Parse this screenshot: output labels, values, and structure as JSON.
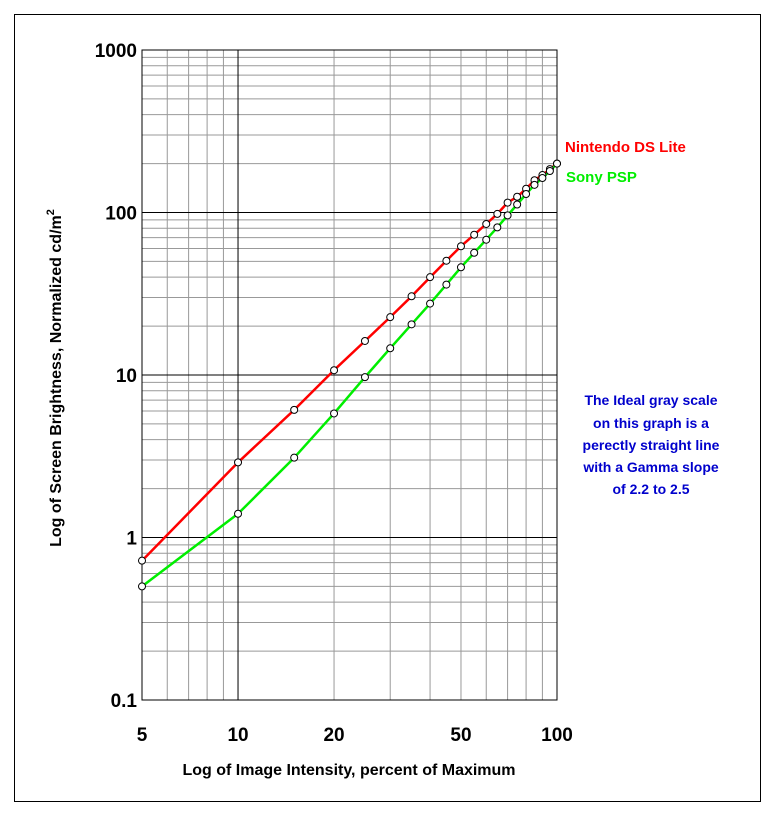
{
  "chart_data": {
    "type": "line",
    "xlabel": "Log of Image Intensity, percent of Maximum",
    "ylabel": "Log of Screen Brightness, Normalized cd/m",
    "ylabel_sup": "2",
    "xscale": "log",
    "yscale": "log",
    "xlim": [
      5,
      100
    ],
    "ylim": [
      0.1,
      1000
    ],
    "grid": true,
    "xticks": [
      5,
      10,
      20,
      50,
      100
    ],
    "xtick_labels": [
      "5",
      "10",
      "20",
      "50",
      "100"
    ],
    "yticks": [
      0.1,
      1,
      10,
      100,
      1000
    ],
    "ytick_labels": [
      "0.1",
      "1",
      "10",
      "100",
      "1000"
    ],
    "legend_position": "right of line ends",
    "series": [
      {
        "name": "Nintendo DS Lite",
        "color": "#ff0000",
        "x": [
          5,
          10,
          15,
          20,
          25,
          30,
          35,
          40,
          45,
          50,
          55,
          60,
          65,
          70,
          75,
          80,
          85,
          90,
          95,
          100
        ],
        "y": [
          0.72,
          2.9,
          6.1,
          10.7,
          16.2,
          22.7,
          30.5,
          40,
          50.5,
          62,
          73,
          85,
          98,
          115,
          125,
          140,
          158,
          170,
          185,
          200
        ]
      },
      {
        "name": "Sony PSP",
        "color": "#00ee00",
        "x": [
          5,
          10,
          15,
          20,
          25,
          30,
          35,
          40,
          45,
          50,
          55,
          60,
          65,
          70,
          75,
          80,
          85,
          90,
          95,
          100
        ],
        "y": [
          0.5,
          1.4,
          3.1,
          5.8,
          9.7,
          14.6,
          20.5,
          27.5,
          36,
          46,
          56.5,
          68,
          81,
          96,
          112,
          130,
          148,
          163,
          180,
          200
        ]
      }
    ],
    "annotation_lines": [
      "The Ideal gray scale",
      "on this graph is a",
      "perectly straight line",
      "with a Gamma slope",
      "of 2.2 to 2.5"
    ]
  }
}
